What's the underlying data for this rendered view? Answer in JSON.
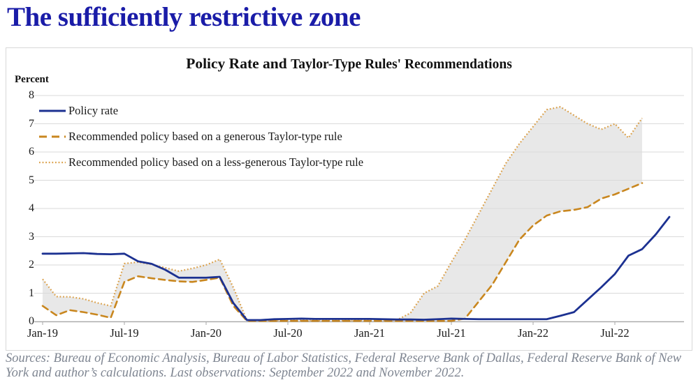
{
  "page_title": "The sufficiently restrictive zone",
  "chart": {
    "title_main": "Policy Rate and ",
    "title_sub": "Taylor-Type Rules' Recommendations",
    "y_axis_title": "Percent"
  },
  "sources": "Sources: Bureau of Economic Analysis, Bureau of Labor Statistics, Federal Reserve Bank of Dallas, Federal Reserve Bank of New York and author’s calculations. Last observations: September 2022 and November 2022.",
  "colors": {
    "heading": "#1a1ca8",
    "policy_rate": "#1c3191",
    "generous_rule": "#c9871f",
    "less_generous_rule": "#dba14b",
    "band": "#e8e8e8",
    "gridline": "#dadada",
    "axis": "#a8a8a8",
    "sources_text": "#7e8591"
  },
  "chart_data": {
    "type": "line",
    "title": "Policy Rate and Taylor-Type Rules' Recommendations",
    "xlabel": "",
    "ylabel": "Percent",
    "ylim": [
      0,
      8
    ],
    "yticks": [
      0,
      1,
      2,
      3,
      4,
      5,
      6,
      7,
      8
    ],
    "x_tick_labels": [
      "Jan-19",
      "Jul-19",
      "Jan-20",
      "Jul-20",
      "Jan-21",
      "Jul-21",
      "Jan-22",
      "Jul-22"
    ],
    "grid": true,
    "legend_position": "top-left",
    "months": [
      "Jan-19",
      "Feb-19",
      "Mar-19",
      "Apr-19",
      "May-19",
      "Jun-19",
      "Jul-19",
      "Aug-19",
      "Sep-19",
      "Oct-19",
      "Nov-19",
      "Dec-19",
      "Jan-20",
      "Feb-20",
      "Mar-20",
      "Apr-20",
      "May-20",
      "Jun-20",
      "Jul-20",
      "Aug-20",
      "Sep-20",
      "Oct-20",
      "Nov-20",
      "Dec-20",
      "Jan-21",
      "Feb-21",
      "Mar-21",
      "Apr-21",
      "May-21",
      "Jun-21",
      "Jul-21",
      "Aug-21",
      "Sep-21",
      "Oct-21",
      "Nov-21",
      "Dec-21",
      "Jan-22",
      "Feb-22",
      "Mar-22",
      "Apr-22",
      "May-22",
      "Jun-22",
      "Jul-22",
      "Aug-22",
      "Sep-22",
      "Oct-22",
      "Nov-22"
    ],
    "series": [
      {
        "id": "policy-rate",
        "name": "Policy rate",
        "line_style": "solid",
        "color": "#1c3191",
        "values": [
          2.4,
          2.4,
          2.41,
          2.42,
          2.39,
          2.38,
          2.4,
          2.13,
          2.04,
          1.83,
          1.55,
          1.55,
          1.55,
          1.58,
          0.65,
          0.05,
          0.05,
          0.08,
          0.09,
          0.1,
          0.09,
          0.09,
          0.09,
          0.09,
          0.09,
          0.08,
          0.07,
          0.07,
          0.06,
          0.08,
          0.1,
          0.09,
          0.08,
          0.08,
          0.08,
          0.08,
          0.08,
          0.08,
          0.2,
          0.33,
          0.77,
          1.21,
          1.68,
          2.33,
          2.56,
          3.08,
          3.7
        ]
      },
      {
        "id": "generous-rule",
        "name": "Recommended policy based on a generous Taylor-type rule",
        "line_style": "dashed",
        "color": "#c9871f",
        "values": [
          0.55,
          0.22,
          0.4,
          0.33,
          0.24,
          0.13,
          1.4,
          1.6,
          1.53,
          1.47,
          1.42,
          1.4,
          1.47,
          1.55,
          0.55,
          0.02,
          0.02,
          0.02,
          0.02,
          0.02,
          0.02,
          0.02,
          0.02,
          0.02,
          0.02,
          0.02,
          0.02,
          0.02,
          0.02,
          0.02,
          0.02,
          0.1,
          0.7,
          1.3,
          2.1,
          2.9,
          3.4,
          3.75,
          3.9,
          3.95,
          4.05,
          4.35,
          4.5,
          4.7,
          4.9
        ]
      },
      {
        "id": "less-generous-rule",
        "name": "Recommended policy based on a less-generous Taylor-type rule",
        "line_style": "dotted",
        "color": "#dba14b",
        "values": [
          1.5,
          0.88,
          0.87,
          0.8,
          0.66,
          0.55,
          2.05,
          2.1,
          2.02,
          1.9,
          1.78,
          1.88,
          2.0,
          2.2,
          1.2,
          0.03,
          0.03,
          0.03,
          0.03,
          0.03,
          0.03,
          0.03,
          0.03,
          0.03,
          0.03,
          0.03,
          0.05,
          0.3,
          1.0,
          1.25,
          2.1,
          2.9,
          3.8,
          4.7,
          5.6,
          6.3,
          6.9,
          7.5,
          7.6,
          7.3,
          7.0,
          6.8,
          7.0,
          6.5,
          7.2
        ]
      }
    ],
    "shaded_band": {
      "between": [
        "generous-rule",
        "less-generous-rule"
      ],
      "color": "#e8e8e8",
      "last_month": "Sep-22"
    }
  }
}
